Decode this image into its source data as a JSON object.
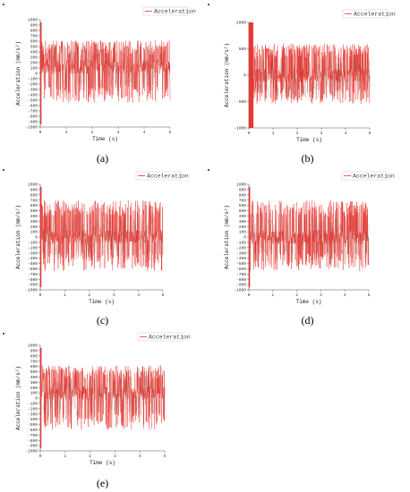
{
  "chart_data": [
    {
      "panel": "a",
      "label": "(a)",
      "type": "line",
      "xlabel": "Time (s)",
      "ylabel": "Acceleration (mm/s²)",
      "xlim": [
        0,
        5
      ],
      "ylim": [
        -1000,
        1000
      ],
      "xticks": [
        "0",
        "1",
        "2",
        "3",
        "4",
        "5"
      ],
      "yticks": [
        "1000",
        "900",
        "800",
        "700",
        "600",
        "500",
        "400",
        "300",
        "200",
        "100",
        "0",
        "-100",
        "-200",
        "-300",
        "-400",
        "-500",
        "-600",
        "-700",
        "-800",
        "-900",
        "-1000"
      ],
      "series": [
        {
          "name": "Acceleration",
          "color": "#e8322c",
          "pattern": "noise",
          "amp_min": -550,
          "amp_max": 620,
          "initial_spike": false,
          "mean": 120
        }
      ]
    },
    {
      "panel": "b",
      "label": "(b)",
      "type": "line",
      "xlabel": "Time (s)",
      "ylabel": "Acceleration (mm/s²)",
      "xlim": [
        0,
        5
      ],
      "ylim": [
        -1000,
        1000
      ],
      "xticks": [
        "0",
        "1",
        "2",
        "3",
        "4",
        "5"
      ],
      "yticks": [
        "1000",
        "500",
        "0",
        "-500",
        "-1000"
      ],
      "series": [
        {
          "name": "Acceleration",
          "color": "#e8322c",
          "pattern": "noise",
          "amp_min": -550,
          "amp_max": 600,
          "initial_spike": true,
          "mean": 0
        }
      ]
    },
    {
      "panel": "c",
      "label": "(c)",
      "type": "line",
      "xlabel": "Time (s)",
      "ylabel": "Acceleration (mm/s²)",
      "xlim": [
        0,
        5
      ],
      "ylim": [
        -1000,
        1000
      ],
      "xticks": [
        "0",
        "1",
        "2",
        "3",
        "4",
        "5"
      ],
      "yticks": [
        "1000",
        "900",
        "800",
        "700",
        "600",
        "500",
        "400",
        "300",
        "200",
        "100",
        "0",
        "-100",
        "-200",
        "-300",
        "-400",
        "-500",
        "-600",
        "-700",
        "-800",
        "-900",
        "-1000"
      ],
      "series": [
        {
          "name": "Acceleration",
          "color": "#e8322c",
          "pattern": "noise",
          "amp_min": -650,
          "amp_max": 700,
          "initial_spike": false,
          "mean": 0
        }
      ]
    },
    {
      "panel": "d",
      "label": "(d)",
      "type": "line",
      "xlabel": "Time (s)",
      "ylabel": "Acceleration (mm/s²)",
      "xlim": [
        0,
        5
      ],
      "ylim": [
        -1000,
        1000
      ],
      "xticks": [
        "0",
        "1",
        "2",
        "3",
        "4",
        "5"
      ],
      "yticks": [
        "1000",
        "900",
        "800",
        "700",
        "600",
        "500",
        "400",
        "300",
        "200",
        "100",
        "0",
        "-100",
        "-200",
        "-300",
        "-400",
        "-500",
        "-600",
        "-700",
        "-800",
        "-900",
        "-1000"
      ],
      "series": [
        {
          "name": "Acceleration",
          "color": "#e8322c",
          "pattern": "noise",
          "amp_min": -650,
          "amp_max": 700,
          "initial_spike": false,
          "mean": 0
        }
      ]
    },
    {
      "panel": "e",
      "label": "(e)",
      "type": "line",
      "xlabel": "Time (s)",
      "ylabel": "Acceleration (mm/s²)",
      "xlim": [
        0,
        5
      ],
      "ylim": [
        -1000,
        1000
      ],
      "xticks": [
        "0",
        "1",
        "2",
        "3",
        "4",
        "5"
      ],
      "yticks": [
        "1000",
        "900",
        "800",
        "700",
        "600",
        "500",
        "400",
        "300",
        "200",
        "100",
        "0",
        "-100",
        "-200",
        "-300",
        "-400",
        "-500",
        "-600",
        "-700",
        "-800",
        "-900",
        "-1000"
      ],
      "series": [
        {
          "name": "Acceleration",
          "color": "#e8322c",
          "pattern": "noise",
          "amp_min": -600,
          "amp_max": 620,
          "initial_spike": false,
          "mean": 100
        }
      ]
    }
  ]
}
